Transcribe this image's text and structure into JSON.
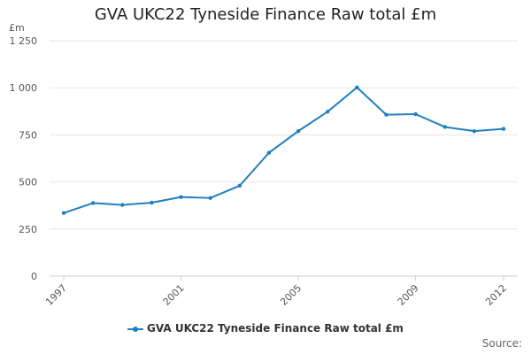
{
  "chart_data": {
    "type": "line",
    "title": "GVA UKC22 Tyneside Finance Raw total £m",
    "ylabel": "£m",
    "xlabel": "",
    "ylim": [
      0,
      1250
    ],
    "yticks": [
      0,
      250,
      500,
      750,
      1000,
      1250
    ],
    "ytick_labels": [
      "0",
      "250",
      "500",
      "750",
      "1 000",
      "1 250"
    ],
    "xticks": [
      1997,
      2001,
      2005,
      2009,
      2012
    ],
    "xtick_labels": [
      "1997",
      "2001",
      "2005",
      "2009",
      "2012"
    ],
    "x": [
      1997,
      1998,
      1999,
      2000,
      2001,
      2002,
      2003,
      2004,
      2005,
      2006,
      2007,
      2008,
      2009,
      2010,
      2011,
      2012
    ],
    "series": [
      {
        "name": "GVA UKC22 Tyneside Finance Raw total £m",
        "color": "#1f7fbf",
        "values": [
          335,
          388,
          378,
          390,
          420,
          415,
          480,
          655,
          770,
          873,
          1002,
          857,
          860,
          792,
          770,
          782
        ]
      }
    ],
    "grid": true,
    "legend": "bottom",
    "source_label": "Source:"
  }
}
